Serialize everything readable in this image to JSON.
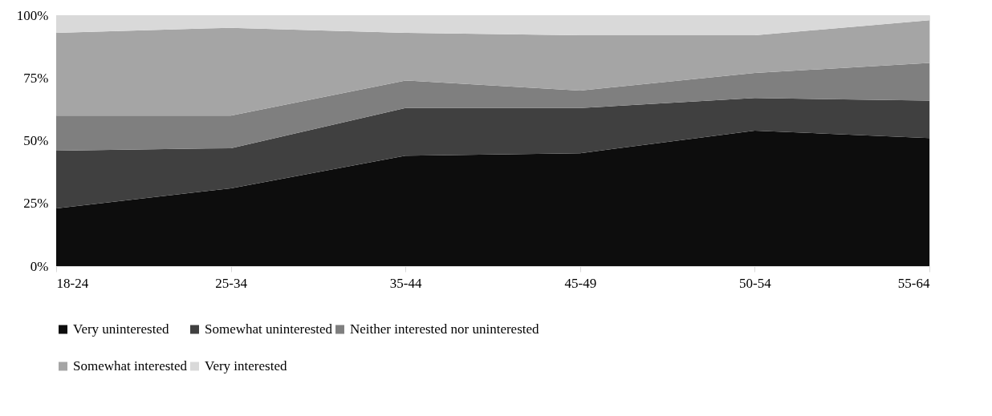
{
  "chart_data": {
    "type": "area",
    "stacked": true,
    "categories": [
      "18-24",
      "25-34",
      "35-44",
      "45-49",
      "50-54",
      "55-64"
    ],
    "series": [
      {
        "name": "Very uninterested",
        "color": "#0d0d0d",
        "values": [
          23,
          31,
          44,
          45,
          54,
          51
        ]
      },
      {
        "name": "Somewhat uninterested",
        "color": "#404040",
        "values": [
          23,
          16,
          19,
          18,
          13,
          15
        ]
      },
      {
        "name": "Neither interested nor uninterested",
        "color": "#7f7f7f",
        "values": [
          14,
          13,
          11,
          7,
          10,
          15
        ]
      },
      {
        "name": "Somewhat interested",
        "color": "#a5a5a5",
        "values": [
          33,
          35,
          19,
          22,
          15,
          17
        ]
      },
      {
        "name": "Very interested",
        "color": "#d9d9d9",
        "values": [
          7,
          5,
          7,
          8,
          8,
          2
        ]
      }
    ],
    "ylim": [
      0,
      100
    ],
    "yticks": [
      {
        "value": 0,
        "label": "0%"
      },
      {
        "value": 25,
        "label": "25%"
      },
      {
        "value": 50,
        "label": "50%"
      },
      {
        "value": 75,
        "label": "75%"
      },
      {
        "value": 100,
        "label": "100%"
      }
    ],
    "grid": false,
    "legend": "bottom"
  }
}
